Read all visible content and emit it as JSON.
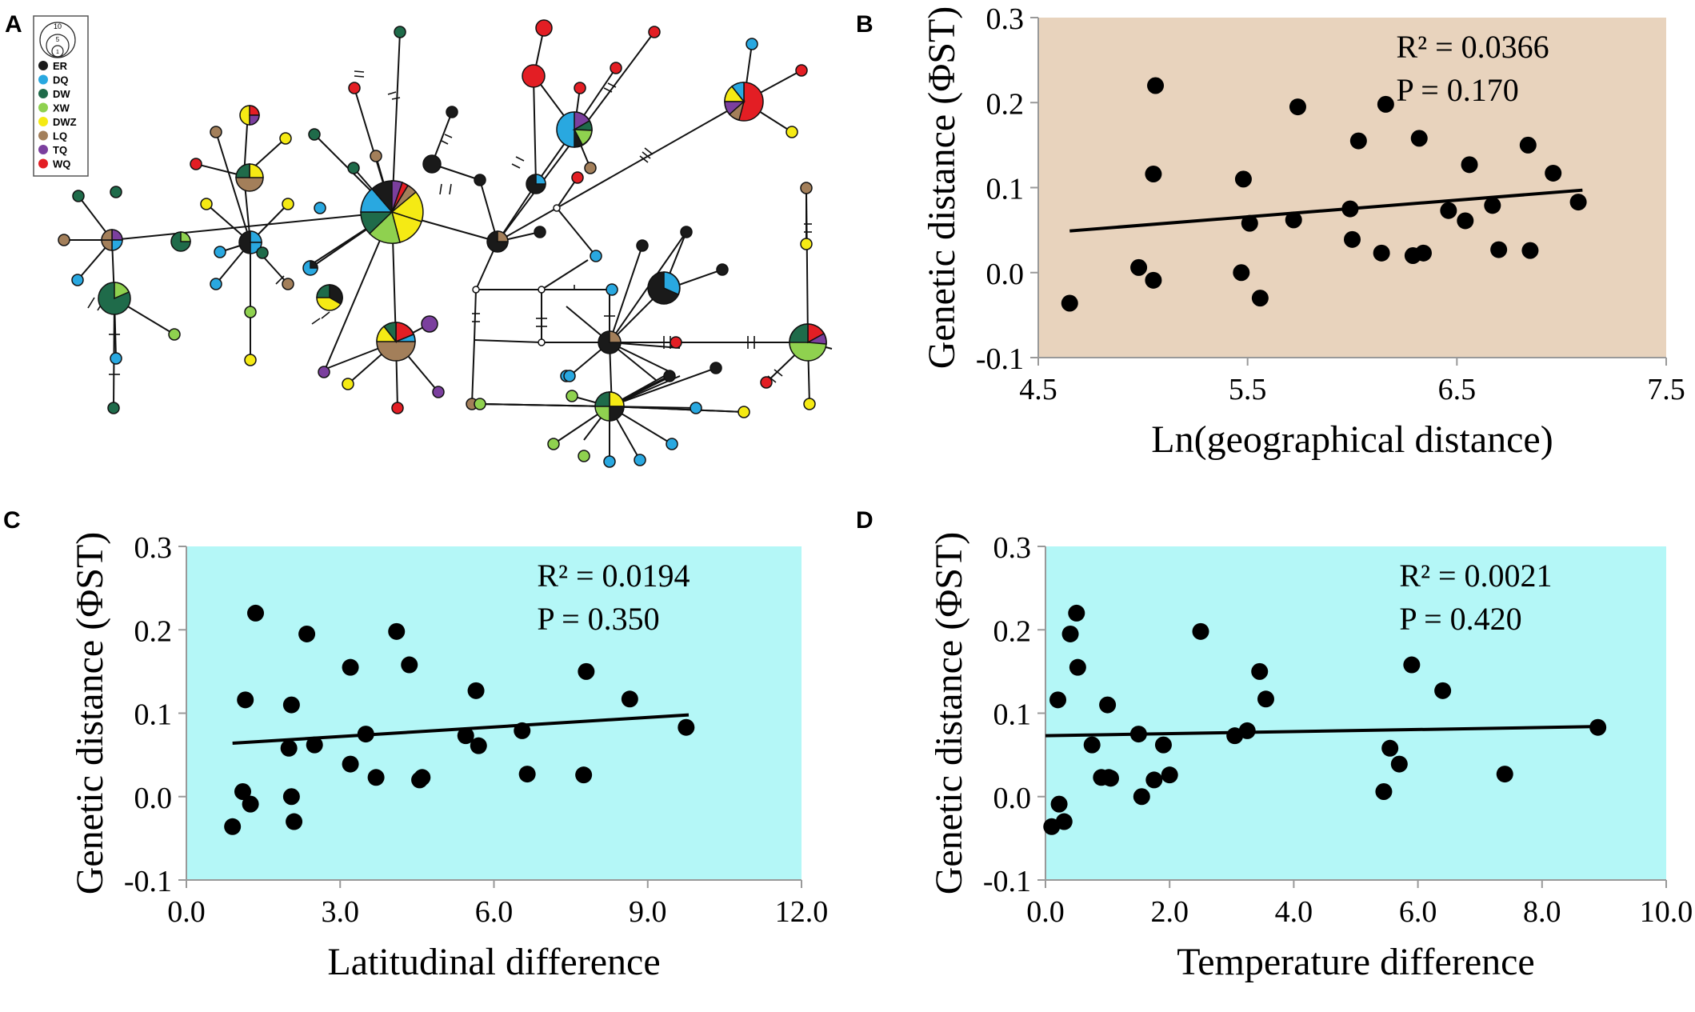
{
  "panel_labels": {
    "a": "A",
    "b": "B",
    "c": "C",
    "d": "D"
  },
  "network": {
    "legend": [
      {
        "code": "ER",
        "color": "#1a1a1a"
      },
      {
        "code": "DQ",
        "color": "#29a8e0"
      },
      {
        "code": "DW",
        "color": "#1f6b4a"
      },
      {
        "code": "XW",
        "color": "#8fd14f"
      },
      {
        "code": "DWZ",
        "color": "#f5ea14"
      },
      {
        "code": "LQ",
        "color": "#a37f5a"
      },
      {
        "code": "TQ",
        "color": "#7b3f9e"
      },
      {
        "code": "WQ",
        "color": "#e31e24"
      }
    ],
    "size_key_labels": [
      "10",
      "5",
      "1"
    ]
  },
  "chart_data": [
    {
      "id": "B",
      "type": "scatter",
      "background_color": "#e8d3bd",
      "xlabel": "Ln(geographical distance)",
      "ylabel": "Genetic distance (ΦST)",
      "xlim": [
        4.5,
        7.5
      ],
      "ylim": [
        -0.1,
        0.3
      ],
      "xticks": [
        4.5,
        5.5,
        6.5,
        7.5
      ],
      "xtick_labels": [
        "4.5",
        "5.5",
        "6.5",
        "7.5"
      ],
      "yticks": [
        -0.1,
        0.0,
        0.1,
        0.2,
        0.3
      ],
      "ytick_labels": [
        "-0.1",
        "0.0",
        "0.1",
        "0.2",
        "0.3"
      ],
      "annotations": [
        "R² = 0.0366",
        "P = 0.170"
      ],
      "trendline": {
        "x": [
          4.65,
          7.1
        ],
        "y": [
          0.049,
          0.097
        ]
      },
      "x": [
        4.65,
        4.98,
        5.05,
        5.05,
        5.06,
        5.47,
        5.48,
        5.51,
        5.56,
        5.72,
        5.74,
        5.99,
        6.0,
        6.03,
        6.14,
        6.16,
        6.29,
        6.32,
        6.34,
        6.46,
        6.54,
        6.56,
        6.67,
        6.7,
        6.84,
        6.85,
        6.96,
        7.08
      ],
      "y": [
        -0.036,
        0.006,
        -0.009,
        0.116,
        0.22,
        0.0,
        0.11,
        0.058,
        -0.03,
        0.062,
        0.195,
        0.075,
        0.039,
        0.155,
        0.023,
        0.198,
        0.02,
        0.158,
        0.023,
        0.073,
        0.061,
        0.127,
        0.079,
        0.027,
        0.15,
        0.026,
        0.117,
        0.083
      ]
    },
    {
      "id": "C",
      "type": "scatter",
      "background_color": "#b4f7f7",
      "xlabel": "Latitudinal difference",
      "ylabel": "Genetic distance (ΦST)",
      "xlim": [
        0.0,
        12.0
      ],
      "ylim": [
        -0.1,
        0.3
      ],
      "xticks": [
        0,
        3,
        6,
        9,
        12
      ],
      "xtick_labels": [
        "0.0",
        "3.0",
        "6.0",
        "9.0",
        "12.0"
      ],
      "yticks": [
        -0.1,
        0.0,
        0.1,
        0.2,
        0.3
      ],
      "ytick_labels": [
        "-0.1",
        "0.0",
        "0.1",
        "0.2",
        "0.3"
      ],
      "annotations": [
        "R² = 0.0194",
        "P = 0.350"
      ],
      "trendline": {
        "x": [
          0.9,
          9.8
        ],
        "y": [
          0.064,
          0.098
        ]
      },
      "x": [
        0.9,
        1.1,
        1.15,
        1.25,
        1.35,
        2.0,
        2.05,
        2.05,
        2.1,
        2.35,
        2.5,
        3.2,
        3.2,
        3.5,
        3.7,
        4.1,
        4.35,
        4.55,
        4.6,
        5.45,
        5.65,
        5.7,
        6.55,
        6.65,
        7.75,
        7.8,
        8.65,
        9.75
      ],
      "y": [
        -0.036,
        0.006,
        0.116,
        -0.009,
        0.22,
        0.058,
        0.0,
        0.11,
        -0.03,
        0.195,
        0.062,
        0.155,
        0.039,
        0.075,
        0.023,
        0.198,
        0.158,
        0.02,
        0.023,
        0.073,
        0.127,
        0.061,
        0.079,
        0.027,
        0.026,
        0.15,
        0.117,
        0.083
      ]
    },
    {
      "id": "D",
      "type": "scatter",
      "background_color": "#b4f7f7",
      "xlabel": "Temperature difference",
      "ylabel": "Genetic distance (ΦST)",
      "xlim": [
        0.0,
        10.0
      ],
      "ylim": [
        -0.1,
        0.3
      ],
      "xticks": [
        0,
        2,
        4,
        6,
        8,
        10
      ],
      "xtick_labels": [
        "0.0",
        "2.0",
        "4.0",
        "6.0",
        "8.0",
        "10.0"
      ],
      "yticks": [
        -0.1,
        0.0,
        0.1,
        0.2,
        0.3
      ],
      "ytick_labels": [
        "-0.1",
        "0.0",
        "0.1",
        "0.2",
        "0.3"
      ],
      "annotations": [
        "R² = 0.0021",
        "P = 0.420"
      ],
      "trendline": {
        "x": [
          0.0,
          8.9
        ],
        "y": [
          0.073,
          0.084
        ]
      },
      "x": [
        0.1,
        0.2,
        0.22,
        0.3,
        0.4,
        0.5,
        0.52,
        0.75,
        0.9,
        1.0,
        1.02,
        1.05,
        1.5,
        1.55,
        1.75,
        1.9,
        2.0,
        2.5,
        3.05,
        3.25,
        3.45,
        3.55,
        5.45,
        5.55,
        5.7,
        5.9,
        6.4,
        7.4,
        8.9
      ],
      "y": [
        -0.036,
        0.116,
        -0.009,
        -0.03,
        0.195,
        0.22,
        0.155,
        0.062,
        0.023,
        0.11,
        0.023,
        0.022,
        0.075,
        0.0,
        0.02,
        0.062,
        0.026,
        0.198,
        0.073,
        0.079,
        0.15,
        0.117,
        0.006,
        0.058,
        0.039,
        0.158,
        0.127,
        0.027,
        0.083
      ]
    }
  ]
}
